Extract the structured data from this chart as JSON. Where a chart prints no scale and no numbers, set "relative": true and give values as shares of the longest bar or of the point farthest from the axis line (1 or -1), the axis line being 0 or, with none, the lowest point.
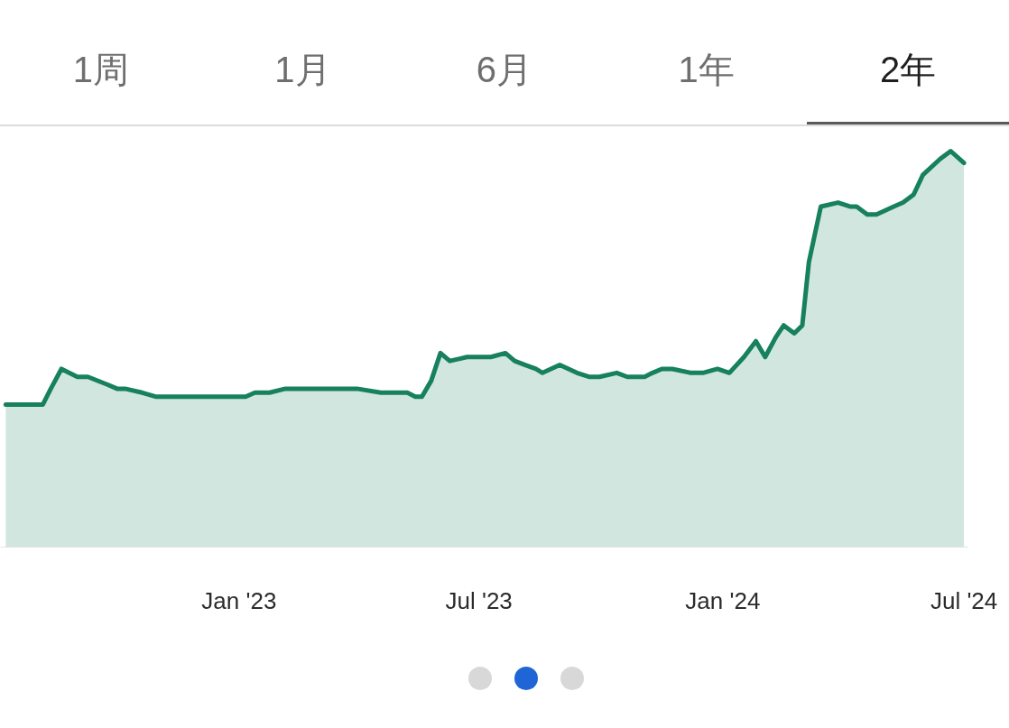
{
  "chart_data": {
    "type": "area",
    "relative": true,
    "annotations": [
      "1周",
      "1月",
      "6月",
      "1年",
      "2年"
    ],
    "xlim": [
      "2022-07-05",
      "2024-07-04"
    ],
    "xticks": [
      {
        "value": "2023-01-01",
        "label": "Jan '23"
      },
      {
        "value": "2023-07-01",
        "label": "Jul '23"
      },
      {
        "value": "2024-01-01",
        "label": "Jan '24"
      },
      {
        "value": "2024-07-01",
        "label": "Jul '24"
      }
    ],
    "x": [
      "2022-07-09",
      "2022-08-06",
      "2022-08-12",
      "2022-08-20",
      "2022-09-01",
      "2022-09-09",
      "2022-09-24",
      "2022-10-01",
      "2022-10-07",
      "2022-10-20",
      "2022-10-30",
      "2022-11-09",
      "2022-11-20",
      "2022-12-03",
      "2022-12-18",
      "2023-01-06",
      "2023-01-13",
      "2023-01-24",
      "2023-02-05",
      "2023-02-15",
      "2023-02-28",
      "2023-03-10",
      "2023-03-31",
      "2023-04-18",
      "2023-05-01",
      "2023-05-08",
      "2023-05-14",
      "2023-05-19",
      "2023-05-26",
      "2023-06-02",
      "2023-06-09",
      "2023-06-22",
      "2023-07-01",
      "2023-07-10",
      "2023-07-21",
      "2023-07-28",
      "2023-08-05",
      "2023-08-13",
      "2023-08-18",
      "2023-08-31",
      "2023-09-13",
      "2023-09-22",
      "2023-09-30",
      "2023-10-13",
      "2023-10-21",
      "2023-10-27",
      "2023-11-03",
      "2023-11-09",
      "2023-11-16",
      "2023-11-24",
      "2023-12-08",
      "2023-12-17",
      "2023-12-28",
      "2024-01-06",
      "2024-01-17",
      "2024-01-26",
      "2024-02-02",
      "2024-02-10",
      "2024-02-16",
      "2024-02-24",
      "2024-03-01",
      "2024-03-06",
      "2024-03-15",
      "2024-03-28",
      "2024-04-06",
      "2024-04-11",
      "2024-04-19",
      "2024-04-26",
      "2024-05-09",
      "2024-05-16",
      "2024-05-24",
      "2024-05-31",
      "2024-06-13",
      "2024-06-21",
      "2024-07-01"
    ],
    "series": [
      {
        "color": "#17805e",
        "values": [
          0.36,
          0.36,
          0.4,
          0.45,
          0.43,
          0.43,
          0.41,
          0.4,
          0.4,
          0.39,
          0.38,
          0.38,
          0.38,
          0.38,
          0.38,
          0.38,
          0.39,
          0.39,
          0.4,
          0.4,
          0.4,
          0.4,
          0.4,
          0.39,
          0.39,
          0.39,
          0.38,
          0.38,
          0.42,
          0.49,
          0.47,
          0.48,
          0.48,
          0.48,
          0.49,
          0.47,
          0.46,
          0.45,
          0.44,
          0.46,
          0.44,
          0.43,
          0.43,
          0.44,
          0.43,
          0.43,
          0.43,
          0.44,
          0.45,
          0.45,
          0.44,
          0.44,
          0.45,
          0.44,
          0.48,
          0.52,
          0.48,
          0.53,
          0.56,
          0.54,
          0.56,
          0.72,
          0.86,
          0.87,
          0.86,
          0.86,
          0.84,
          0.84,
          0.86,
          0.87,
          0.89,
          0.94,
          0.98,
          1.0,
          0.97
        ]
      }
    ]
  }
}
